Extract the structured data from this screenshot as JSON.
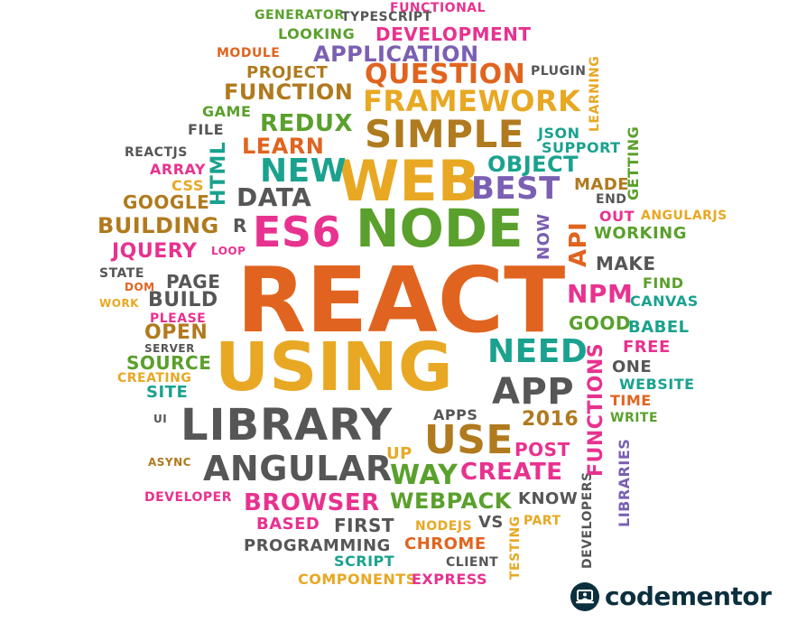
{
  "colors": {
    "orange": "#e0641f",
    "gold": "#e8a823",
    "green": "#5aa02c",
    "teal": "#1aa28f",
    "pink": "#e8328f",
    "purple": "#7a5fb2",
    "gray": "#565656",
    "brown": "#b07a1e",
    "brand": "#0c2f3e"
  },
  "words": [
    "REACT",
    "USING",
    "WEB",
    "NODE",
    "LIBRARY",
    "SIMPLE",
    "FRAMEWORK",
    "ES6",
    "ANGULAR",
    "NEW",
    "BEST",
    "DATA",
    "APP",
    "USE",
    "NEED",
    "WAY",
    "CREATE",
    "WEBPACK",
    "BROWSER",
    "QUESTION",
    "APPLICATION",
    "DEVELOPMENT",
    "FUNCTION",
    "PROJECT",
    "REDUX",
    "LEARN",
    "OBJECT",
    "JSON",
    "SUPPORT",
    "GENERATOR",
    "TYPESCRIPT",
    "FUNCTIONAL",
    "LOOKING",
    "MODULE",
    "PLUGIN",
    "LEARNING",
    "GAME",
    "FILE",
    "REACTJS",
    "ARRAY",
    "CSS",
    "HTML",
    "GOOGLE",
    "BUILDING",
    "R",
    "JQUERY",
    "LOOP",
    "STATE",
    "DOM",
    "WORK",
    "PAGE",
    "BUILD",
    "PLEASE",
    "OPEN",
    "SERVER",
    "SOURCE",
    "CREATING",
    "SITE",
    "UI",
    "ASYNC",
    "DEVELOPER",
    "BASED",
    "PROGRAMMING",
    "COMPONENTS",
    "SCRIPT",
    "EXPRESS",
    "CHROME",
    "CLIENT",
    "NODEJS",
    "VS",
    "FIRST",
    "KNOW",
    "PART",
    "TESTING",
    "DEVELOPERS",
    "POST",
    "UP",
    "2016",
    "APPS",
    "FUNCTIONS",
    "LIBRARIES",
    "WRITE",
    "TIME",
    "WEBSITE",
    "ONE",
    "FREE",
    "BABEL",
    "GOOD",
    "CANVAS",
    "FIND",
    "NPM",
    "MAKE",
    "WORKING",
    "API",
    "OUT",
    "ANGULARJS",
    "END",
    "MADE",
    "GETTING",
    "NOW"
  ],
  "brand": {
    "name": "codementor",
    "logo_icon": "laptop-person-icon"
  }
}
